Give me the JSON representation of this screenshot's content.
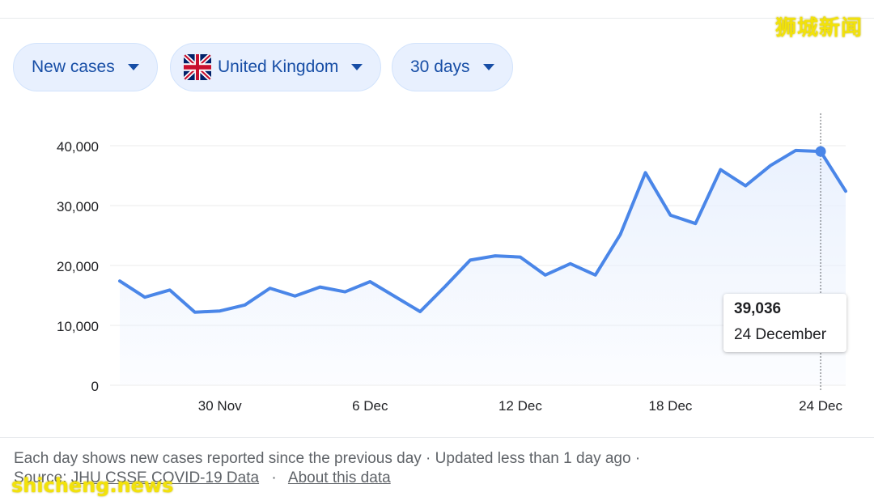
{
  "watermark": {
    "top_right": "狮城新闻",
    "bottom_left": "shicheng.news"
  },
  "filters": {
    "metric": {
      "label": "New cases"
    },
    "region": {
      "label": "United Kingdom",
      "flag_icon": "uk-flag-icon"
    },
    "period": {
      "label": "30 days"
    }
  },
  "tooltip": {
    "value": "39,036",
    "date": "24 December"
  },
  "footer": {
    "line1": "Each day shows new cases reported since the previous day · Updated less than 1 day ago ·",
    "source_prefix": "Source:",
    "source_link": "JHU CSSE COVID-19 Data",
    "separator": "·",
    "about_link": "About this data"
  },
  "colors": {
    "line": "#4a86e8",
    "area_fill": "#e8f0fe",
    "chip_bg": "#e8f0fe",
    "chip_text": "#174ea6"
  },
  "chart_data": {
    "type": "area",
    "xlabel": "",
    "ylabel": "",
    "ylim": [
      0,
      40000
    ],
    "yticks": [
      "40,000",
      "30,000",
      "20,000",
      "10,000",
      "0"
    ],
    "ytick_values": [
      40000,
      30000,
      20000,
      10000,
      0
    ],
    "xticks": [
      "30 Nov",
      "6 Dec",
      "12 Dec",
      "18 Dec",
      "24 Dec"
    ],
    "xtick_index": [
      4,
      10,
      16,
      22,
      28
    ],
    "grid": true,
    "x": [
      "26 Nov",
      "27 Nov",
      "28 Nov",
      "29 Nov",
      "30 Nov",
      "1 Dec",
      "2 Dec",
      "3 Dec",
      "4 Dec",
      "5 Dec",
      "6 Dec",
      "7 Dec",
      "8 Dec",
      "9 Dec",
      "10 Dec",
      "11 Dec",
      "12 Dec",
      "13 Dec",
      "14 Dec",
      "15 Dec",
      "16 Dec",
      "17 Dec",
      "18 Dec",
      "19 Dec",
      "20 Dec",
      "21 Dec",
      "22 Dec",
      "23 Dec",
      "24 Dec",
      "25 Dec"
    ],
    "series": [
      {
        "values": [
          17400,
          14700,
          15900,
          12200,
          12400,
          13400,
          16200,
          14900,
          16400,
          15600,
          17300,
          14800,
          12300,
          16500,
          20900,
          21600,
          21400,
          18400,
          20300,
          18400,
          25200,
          35500,
          28400,
          27000,
          36000,
          33300,
          36700,
          39200,
          39036,
          32400
        ]
      }
    ],
    "highlight": {
      "index": 28,
      "value": 39036,
      "label": "24 December"
    }
  }
}
